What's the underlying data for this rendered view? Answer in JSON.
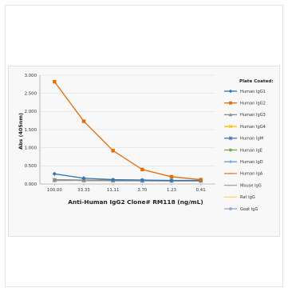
{
  "chart_data": {
    "type": "line",
    "xlabel": "Anti-Human IgG2 Clone# RM118 (ng/mL)",
    "ylabel": "Abs (405nm)",
    "categories": [
      "100.00",
      "33.33",
      "11.11",
      "3.70",
      "1.23",
      "0.41"
    ],
    "ylim": [
      0,
      3.0
    ],
    "yticks": [
      "0.000",
      "0.500",
      "1.000",
      "1.500",
      "2.000",
      "2.500",
      "3.000"
    ],
    "grid": "horizontal",
    "legend_position": "right",
    "legend_title": "Plate Coated:",
    "series": [
      {
        "name": "Human IgG1",
        "color": "#2e75b6",
        "marker": "diamond",
        "values": [
          0.28,
          0.16,
          0.12,
          0.11,
          0.1,
          0.1
        ]
      },
      {
        "name": "Human IgG2",
        "color": "#e36c09",
        "marker": "square",
        "values": [
          2.82,
          1.73,
          0.92,
          0.4,
          0.2,
          0.12
        ]
      },
      {
        "name": "Human IgG3",
        "color": "#8c8c8c",
        "marker": "triangle",
        "values": [
          0.12,
          0.11,
          0.1,
          0.1,
          0.09,
          0.09
        ]
      },
      {
        "name": "Human IgG4",
        "color": "#ffc000",
        "marker": "x",
        "values": [
          0.1,
          0.1,
          0.09,
          0.09,
          0.09,
          0.09
        ]
      },
      {
        "name": "Human IgM",
        "color": "#4472c4",
        "marker": "star",
        "values": [
          0.11,
          0.1,
          0.1,
          0.09,
          0.09,
          0.09
        ]
      },
      {
        "name": "Human IgE",
        "color": "#70ad47",
        "marker": "circle",
        "values": [
          0.1,
          0.1,
          0.09,
          0.09,
          0.09,
          0.09
        ]
      },
      {
        "name": "Human IgD",
        "color": "#5b9bd5",
        "marker": "plus",
        "values": [
          0.11,
          0.1,
          0.1,
          0.1,
          0.09,
          0.09
        ]
      },
      {
        "name": "Human IgA",
        "color": "#ed7d31",
        "marker": "dash",
        "values": [
          0.1,
          0.09,
          0.09,
          0.09,
          0.09,
          0.09
        ]
      },
      {
        "name": "Mouse IgG",
        "color": "#a5a5a5",
        "marker": "dash",
        "values": [
          0.1,
          0.1,
          0.09,
          0.09,
          0.09,
          0.09
        ]
      },
      {
        "name": "Rat IgG",
        "color": "#ffd966",
        "marker": "dash",
        "values": [
          0.1,
          0.09,
          0.09,
          0.09,
          0.09,
          0.09
        ]
      },
      {
        "name": "Goat IgG",
        "color": "#8ea9db",
        "marker": "circle",
        "values": [
          0.11,
          0.1,
          0.1,
          0.09,
          0.09,
          0.09
        ]
      }
    ]
  }
}
